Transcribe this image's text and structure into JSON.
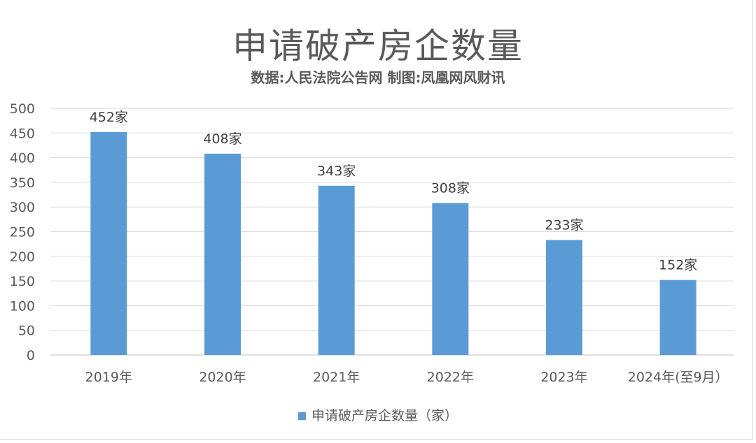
{
  "chart_data": {
    "type": "bar",
    "title": "申请破产房企数量",
    "subtitle": "数据:人民法院公告网  制图:凤凰网风财讯",
    "categories": [
      "2019年",
      "2020年",
      "2021年",
      "2022年",
      "2023年",
      "2024年(至9月）"
    ],
    "series": [
      {
        "name": "申请破产房企数量（家）",
        "values": [
          452,
          408,
          343,
          308,
          233,
          152
        ]
      }
    ],
    "data_labels": [
      "452家",
      "408家",
      "343家",
      "308家",
      "233家",
      "152家"
    ],
    "yticks": [
      0,
      50,
      100,
      150,
      200,
      250,
      300,
      350,
      400,
      450,
      500
    ],
    "ylim": [
      0,
      500
    ],
    "grid": true,
    "legend": "bottom",
    "bar_color": "#5b9bd5"
  }
}
